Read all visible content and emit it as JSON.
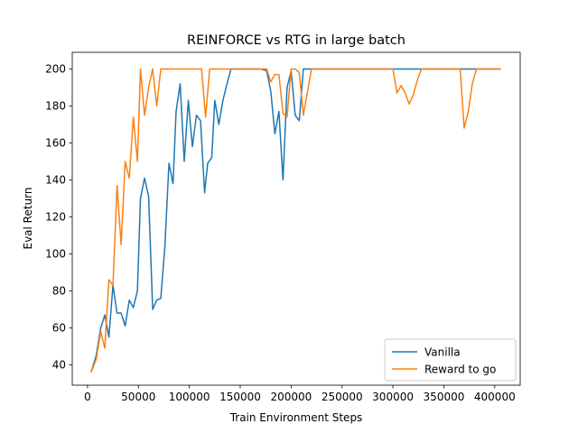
{
  "chart_data": {
    "type": "line",
    "title": "REINFORCE vs RTG in large batch",
    "xlabel": "Train Environment Steps",
    "ylabel": "Eval Return",
    "xlim": [
      -15000,
      425000
    ],
    "ylim": [
      29,
      209
    ],
    "xticks": [
      0,
      50000,
      100000,
      150000,
      200000,
      250000,
      300000,
      350000,
      400000
    ],
    "xtick_labels": [
      "0",
      "50000",
      "100000",
      "150000",
      "200000",
      "250000",
      "300000",
      "350000",
      "400000"
    ],
    "yticks": [
      40,
      60,
      80,
      100,
      120,
      140,
      160,
      180,
      200
    ],
    "ytick_labels": [
      "40",
      "60",
      "80",
      "100",
      "120",
      "140",
      "160",
      "180",
      "200"
    ],
    "grid": false,
    "legend_position": "lower-right",
    "series": [
      {
        "name": "Vanilla",
        "color": "#1f77b4",
        "x": [
          3500,
          8500,
          13000,
          17000,
          21000,
          25000,
          29000,
          33000,
          37000,
          41000,
          45000,
          49000,
          52000,
          56000,
          60000,
          64000,
          68000,
          72000,
          76000,
          80000,
          84000,
          87000,
          91000,
          95000,
          99000,
          103000,
          107000,
          111000,
          115000,
          118000,
          122000,
          125000,
          129000,
          133000,
          137000,
          141000,
          145000,
          150000,
          160000,
          170000,
          176000,
          180000,
          184000,
          188000,
          192000,
          196000,
          200000,
          204000,
          208000,
          212000,
          220000,
          240000,
          260000,
          280000,
          300000,
          320000,
          340000,
          360000,
          380000,
          400000,
          406000
        ],
        "y": [
          36,
          45,
          60,
          67,
          55,
          83,
          68,
          68,
          61,
          75,
          71,
          80,
          130,
          141,
          131,
          70,
          75,
          76,
          104,
          149,
          138,
          177,
          192,
          150,
          183,
          158,
          175,
          172,
          133,
          149,
          152,
          183,
          170,
          183,
          192,
          200,
          200,
          200,
          200,
          200,
          199,
          188,
          165,
          177,
          140,
          190,
          199,
          175,
          172,
          200,
          200,
          200,
          200,
          200,
          200,
          200,
          200,
          200,
          200,
          200,
          200
        ]
      },
      {
        "name": "Reward to go",
        "color": "#ff7f0e",
        "x": [
          3500,
          8500,
          13000,
          17000,
          21000,
          25000,
          29000,
          33000,
          37000,
          41000,
          45000,
          49000,
          52000,
          56000,
          60000,
          64000,
          68000,
          72000,
          76000,
          80000,
          90000,
          100000,
          108000,
          112000,
          116000,
          120000,
          130000,
          150000,
          170000,
          176000,
          180000,
          184000,
          188000,
          192000,
          196000,
          200000,
          204000,
          208000,
          212000,
          220000,
          250000,
          280000,
          296000,
          300000,
          304000,
          308000,
          312000,
          316000,
          320000,
          324000,
          328000,
          340000,
          360000,
          366000,
          370000,
          374000,
          378000,
          382000,
          386000,
          400000,
          406000
        ],
        "y": [
          36,
          43,
          58,
          49,
          86,
          83,
          137,
          105,
          150,
          141,
          174,
          150,
          200,
          175,
          190,
          200,
          180,
          200,
          200,
          200,
          200,
          200,
          200,
          200,
          174,
          200,
          200,
          200,
          200,
          200,
          193,
          197,
          197,
          176,
          174,
          200,
          200,
          198,
          175,
          200,
          200,
          200,
          200,
          200,
          187,
          191,
          187,
          181,
          186,
          194,
          200,
          200,
          200,
          200,
          168,
          177,
          192,
          200,
          200,
          200,
          200
        ]
      }
    ]
  }
}
